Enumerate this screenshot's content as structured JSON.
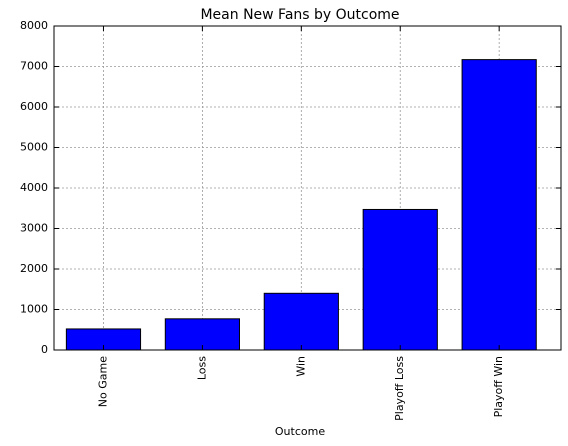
{
  "chart_data": {
    "type": "bar",
    "title": "Mean New Fans by Outcome",
    "xlabel": "Outcome",
    "categories": [
      "No Game",
      "Loss",
      "Win",
      "Playoff Loss",
      "Playoff Win"
    ],
    "values": [
      520,
      770,
      1400,
      3470,
      7170
    ],
    "color": "#0000ff",
    "ylim": [
      0,
      8000
    ],
    "yticks": [
      0,
      1000,
      2000,
      3000,
      4000,
      5000,
      6000,
      7000,
      8000
    ],
    "grid": true
  }
}
